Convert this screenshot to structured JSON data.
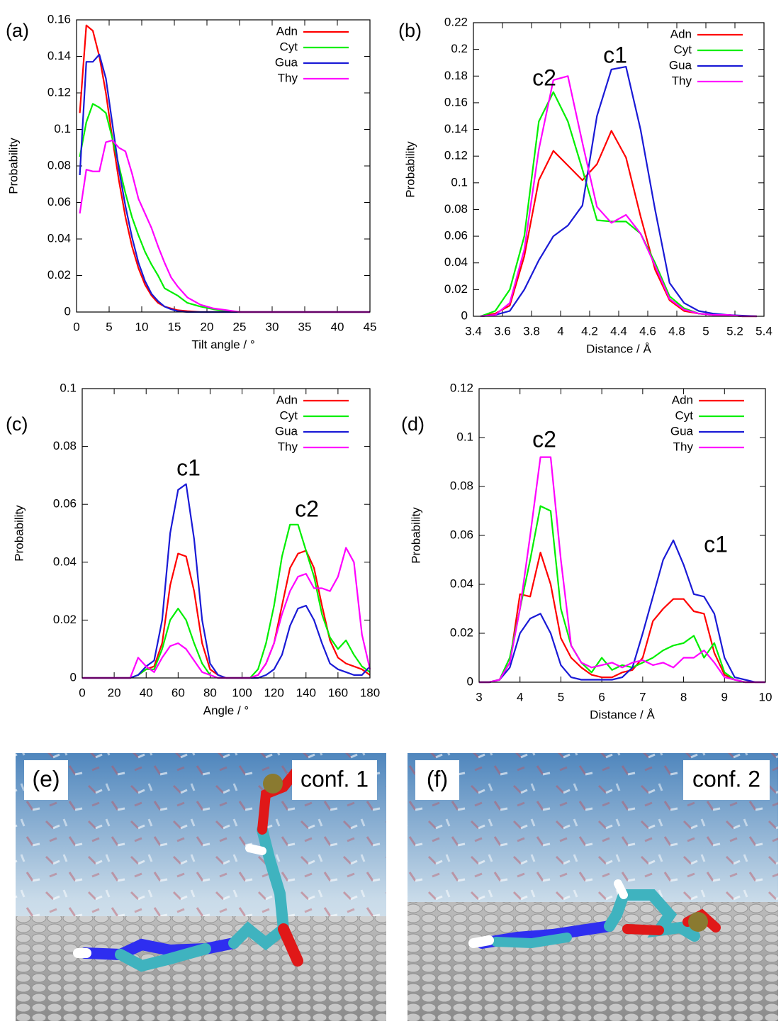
{
  "chart_data": [
    {
      "type": "line",
      "panel_label": "(a)",
      "xlabel": "Tilt angle / °",
      "ylabel": "Probability",
      "xlim": [
        0,
        45
      ],
      "xticks": [
        0,
        5,
        10,
        15,
        20,
        25,
        30,
        35,
        40,
        45
      ],
      "ylim": [
        0,
        0.16
      ],
      "yticks": [
        0,
        0.02,
        0.04,
        0.06,
        0.08,
        0.1,
        0.12,
        0.14,
        0.16
      ],
      "legend": "top-right",
      "annotations": [],
      "x": [
        0.5,
        1.5,
        2.5,
        3.5,
        4.5,
        5.5,
        6.5,
        7.5,
        8.5,
        9.5,
        10.5,
        11.5,
        12.5,
        13.5,
        14.5,
        15.5,
        17,
        19,
        21,
        23,
        25,
        30,
        35,
        40,
        45
      ],
      "series": [
        {
          "name": "Adn",
          "color": "#ff0000",
          "values": [
            0.109,
            0.157,
            0.154,
            0.14,
            0.12,
            0.095,
            0.072,
            0.052,
            0.036,
            0.024,
            0.015,
            0.009,
            0.005,
            0.003,
            0.002,
            0.001,
            0.0005,
            0,
            0,
            0,
            0,
            0,
            0,
            0,
            0
          ]
        },
        {
          "name": "Cyt",
          "color": "#00ee00",
          "values": [
            0.085,
            0.104,
            0.114,
            0.112,
            0.109,
            0.095,
            0.08,
            0.065,
            0.052,
            0.042,
            0.033,
            0.026,
            0.02,
            0.013,
            0.011,
            0.009,
            0.005,
            0.003,
            0.0015,
            0.0005,
            0,
            0,
            0,
            0,
            0
          ]
        },
        {
          "name": "Gua",
          "color": "#1a1ad6",
          "values": [
            0.075,
            0.137,
            0.137,
            0.141,
            0.128,
            0.103,
            0.078,
            0.058,
            0.041,
            0.027,
            0.017,
            0.01,
            0.006,
            0.003,
            0.0015,
            0.0005,
            0,
            0,
            0,
            0,
            0,
            0,
            0,
            0,
            0
          ]
        },
        {
          "name": "Thy",
          "color": "#ff00ff",
          "values": [
            0.054,
            0.078,
            0.077,
            0.077,
            0.093,
            0.094,
            0.09,
            0.088,
            0.076,
            0.062,
            0.054,
            0.046,
            0.036,
            0.027,
            0.019,
            0.014,
            0.008,
            0.004,
            0.002,
            0.001,
            0,
            0,
            0,
            0,
            0
          ]
        }
      ]
    },
    {
      "type": "line",
      "panel_label": "(b)",
      "xlabel": "Distance / Å",
      "ylabel": "Probability",
      "xlim": [
        3.4,
        5.4
      ],
      "xticks": [
        3.4,
        3.6,
        3.8,
        4,
        4.2,
        4.4,
        4.6,
        4.8,
        5,
        5.2,
        5.4
      ],
      "ylim": [
        0,
        0.22
      ],
      "yticks": [
        0,
        0.02,
        0.04,
        0.06,
        0.08,
        0.1,
        0.12,
        0.14,
        0.16,
        0.18,
        0.2,
        0.22
      ],
      "legend": "top-right",
      "annotations": [
        "c2",
        "c1"
      ],
      "x": [
        3.45,
        3.55,
        3.65,
        3.75,
        3.85,
        3.95,
        4.05,
        4.15,
        4.25,
        4.35,
        4.45,
        4.55,
        4.65,
        4.75,
        4.85,
        4.95,
        5.05,
        5.15,
        5.25,
        5.35
      ],
      "series": [
        {
          "name": "Adn",
          "color": "#ff0000",
          "values": [
            0,
            0.002,
            0.008,
            0.045,
            0.102,
            0.124,
            0.113,
            0.102,
            0.114,
            0.139,
            0.119,
            0.075,
            0.035,
            0.012,
            0.004,
            0.002,
            0.001,
            0.001,
            0,
            0
          ]
        },
        {
          "name": "Cyt",
          "color": "#00ee00",
          "values": [
            0,
            0.004,
            0.02,
            0.06,
            0.146,
            0.168,
            0.146,
            0.11,
            0.072,
            0.071,
            0.071,
            0.062,
            0.04,
            0.015,
            0.006,
            0.002,
            0.001,
            0.001,
            0,
            0
          ]
        },
        {
          "name": "Gua",
          "color": "#1a1ad6",
          "values": [
            0,
            0.001,
            0.004,
            0.02,
            0.042,
            0.06,
            0.068,
            0.083,
            0.15,
            0.185,
            0.187,
            0.14,
            0.08,
            0.025,
            0.01,
            0.004,
            0.002,
            0.001,
            0.0005,
            0
          ]
        },
        {
          "name": "Thy",
          "color": "#ff00ff",
          "values": [
            0,
            0.001,
            0.01,
            0.05,
            0.125,
            0.177,
            0.18,
            0.13,
            0.082,
            0.07,
            0.076,
            0.062,
            0.038,
            0.013,
            0.005,
            0.002,
            0.001,
            0.001,
            0,
            0
          ]
        }
      ]
    },
    {
      "type": "line",
      "panel_label": "(c)",
      "xlabel": "Angle / °",
      "ylabel": "Probability",
      "xlim": [
        0,
        180
      ],
      "xticks": [
        0,
        20,
        40,
        60,
        80,
        100,
        120,
        140,
        160,
        180
      ],
      "ylim": [
        0,
        0.1
      ],
      "yticks": [
        0,
        0.02,
        0.04,
        0.06,
        0.08,
        0.1
      ],
      "legend": "top-right",
      "annotations": [
        "c1",
        "c2"
      ],
      "x": [
        0,
        5,
        10,
        15,
        20,
        25,
        30,
        35,
        40,
        45,
        50,
        55,
        60,
        65,
        70,
        75,
        80,
        85,
        90,
        95,
        100,
        105,
        110,
        115,
        120,
        125,
        130,
        135,
        140,
        145,
        150,
        155,
        160,
        165,
        170,
        175,
        180
      ],
      "series": [
        {
          "name": "Adn",
          "color": "#ff0000",
          "values": [
            0,
            0,
            0,
            0,
            0,
            0,
            0,
            0.001,
            0.003,
            0.004,
            0.012,
            0.032,
            0.043,
            0.042,
            0.03,
            0.012,
            0.003,
            0.001,
            0,
            0,
            0,
            0,
            0.001,
            0.005,
            0.012,
            0.025,
            0.038,
            0.043,
            0.044,
            0.038,
            0.025,
            0.013,
            0.007,
            0.005,
            0.004,
            0.003,
            0.001
          ]
        },
        {
          "name": "Cyt",
          "color": "#00ee00",
          "values": [
            0,
            0,
            0,
            0,
            0,
            0,
            0,
            0.001,
            0.003,
            0.003,
            0.01,
            0.02,
            0.024,
            0.02,
            0.012,
            0.005,
            0.001,
            0,
            0,
            0,
            0,
            0,
            0.003,
            0.012,
            0.025,
            0.042,
            0.053,
            0.053,
            0.044,
            0.035,
            0.022,
            0.014,
            0.01,
            0.013,
            0.008,
            0.004,
            0.002
          ]
        },
        {
          "name": "Gua",
          "color": "#1a1ad6",
          "values": [
            0,
            0,
            0,
            0,
            0,
            0,
            0,
            0.001,
            0.004,
            0.006,
            0.02,
            0.05,
            0.065,
            0.067,
            0.048,
            0.02,
            0.005,
            0.001,
            0,
            0,
            0,
            0,
            0,
            0.001,
            0.003,
            0.008,
            0.018,
            0.024,
            0.025,
            0.02,
            0.012,
            0.005,
            0.003,
            0.002,
            0.001,
            0.001,
            0.004
          ]
        },
        {
          "name": "Thy",
          "color": "#ff00ff",
          "values": [
            0,
            0,
            0,
            0,
            0,
            0,
            0,
            0.007,
            0.004,
            0.002,
            0.007,
            0.011,
            0.012,
            0.01,
            0.006,
            0.002,
            0.001,
            0,
            0,
            0,
            0,
            0,
            0.001,
            0.005,
            0.012,
            0.022,
            0.03,
            0.035,
            0.036,
            0.031,
            0.031,
            0.03,
            0.035,
            0.045,
            0.04,
            0.015,
            0.003
          ]
        }
      ]
    },
    {
      "type": "line",
      "panel_label": "(d)",
      "xlabel": "Distance / Å",
      "ylabel": "Probability",
      "xlim": [
        3,
        10
      ],
      "xticks": [
        3,
        4,
        5,
        6,
        7,
        8,
        9,
        10
      ],
      "ylim": [
        0,
        0.12
      ],
      "yticks": [
        0,
        0.02,
        0.04,
        0.06,
        0.08,
        0.1,
        0.12
      ],
      "legend": "top-right",
      "annotations": [
        "c2",
        "c1"
      ],
      "x": [
        3,
        3.25,
        3.5,
        3.75,
        4,
        4.25,
        4.5,
        4.75,
        5,
        5.25,
        5.5,
        5.75,
        6,
        6.25,
        6.5,
        6.75,
        7,
        7.25,
        7.5,
        7.75,
        8,
        8.25,
        8.5,
        8.75,
        9,
        9.25,
        9.5,
        9.75,
        10
      ],
      "series": [
        {
          "name": "Adn",
          "color": "#ff0000",
          "values": [
            0,
            0,
            0.001,
            0.008,
            0.036,
            0.035,
            0.053,
            0.04,
            0.018,
            0.01,
            0.006,
            0.003,
            0.002,
            0.002,
            0.004,
            0.005,
            0.01,
            0.025,
            0.03,
            0.034,
            0.034,
            0.029,
            0.028,
            0.012,
            0.003,
            0.001,
            0,
            0,
            0
          ]
        },
        {
          "name": "Cyt",
          "color": "#00ee00",
          "values": [
            0,
            0,
            0.001,
            0.01,
            0.03,
            0.05,
            0.072,
            0.07,
            0.03,
            0.015,
            0.008,
            0.004,
            0.01,
            0.005,
            0.007,
            0.006,
            0.008,
            0.01,
            0.013,
            0.015,
            0.016,
            0.019,
            0.01,
            0.016,
            0.004,
            0.001,
            0,
            0,
            0
          ]
        },
        {
          "name": "Gua",
          "color": "#1a1ad6",
          "values": [
            0,
            0,
            0.001,
            0.006,
            0.02,
            0.026,
            0.028,
            0.02,
            0.007,
            0.002,
            0.001,
            0.001,
            0.001,
            0.001,
            0.002,
            0.006,
            0.02,
            0.035,
            0.05,
            0.058,
            0.048,
            0.036,
            0.035,
            0.028,
            0.01,
            0.002,
            0.001,
            0,
            0
          ]
        },
        {
          "name": "Thy",
          "color": "#ff00ff",
          "values": [
            0,
            0,
            0.001,
            0.008,
            0.03,
            0.06,
            0.092,
            0.092,
            0.05,
            0.015,
            0.008,
            0.006,
            0.007,
            0.008,
            0.006,
            0.008,
            0.009,
            0.007,
            0.008,
            0.006,
            0.01,
            0.01,
            0.013,
            0.008,
            0.002,
            0.001,
            0,
            0,
            0
          ]
        }
      ]
    }
  ],
  "images": [
    {
      "label": "(e)",
      "caption": "conf. 1"
    },
    {
      "label": "(f)",
      "caption": "conf. 2"
    }
  ]
}
